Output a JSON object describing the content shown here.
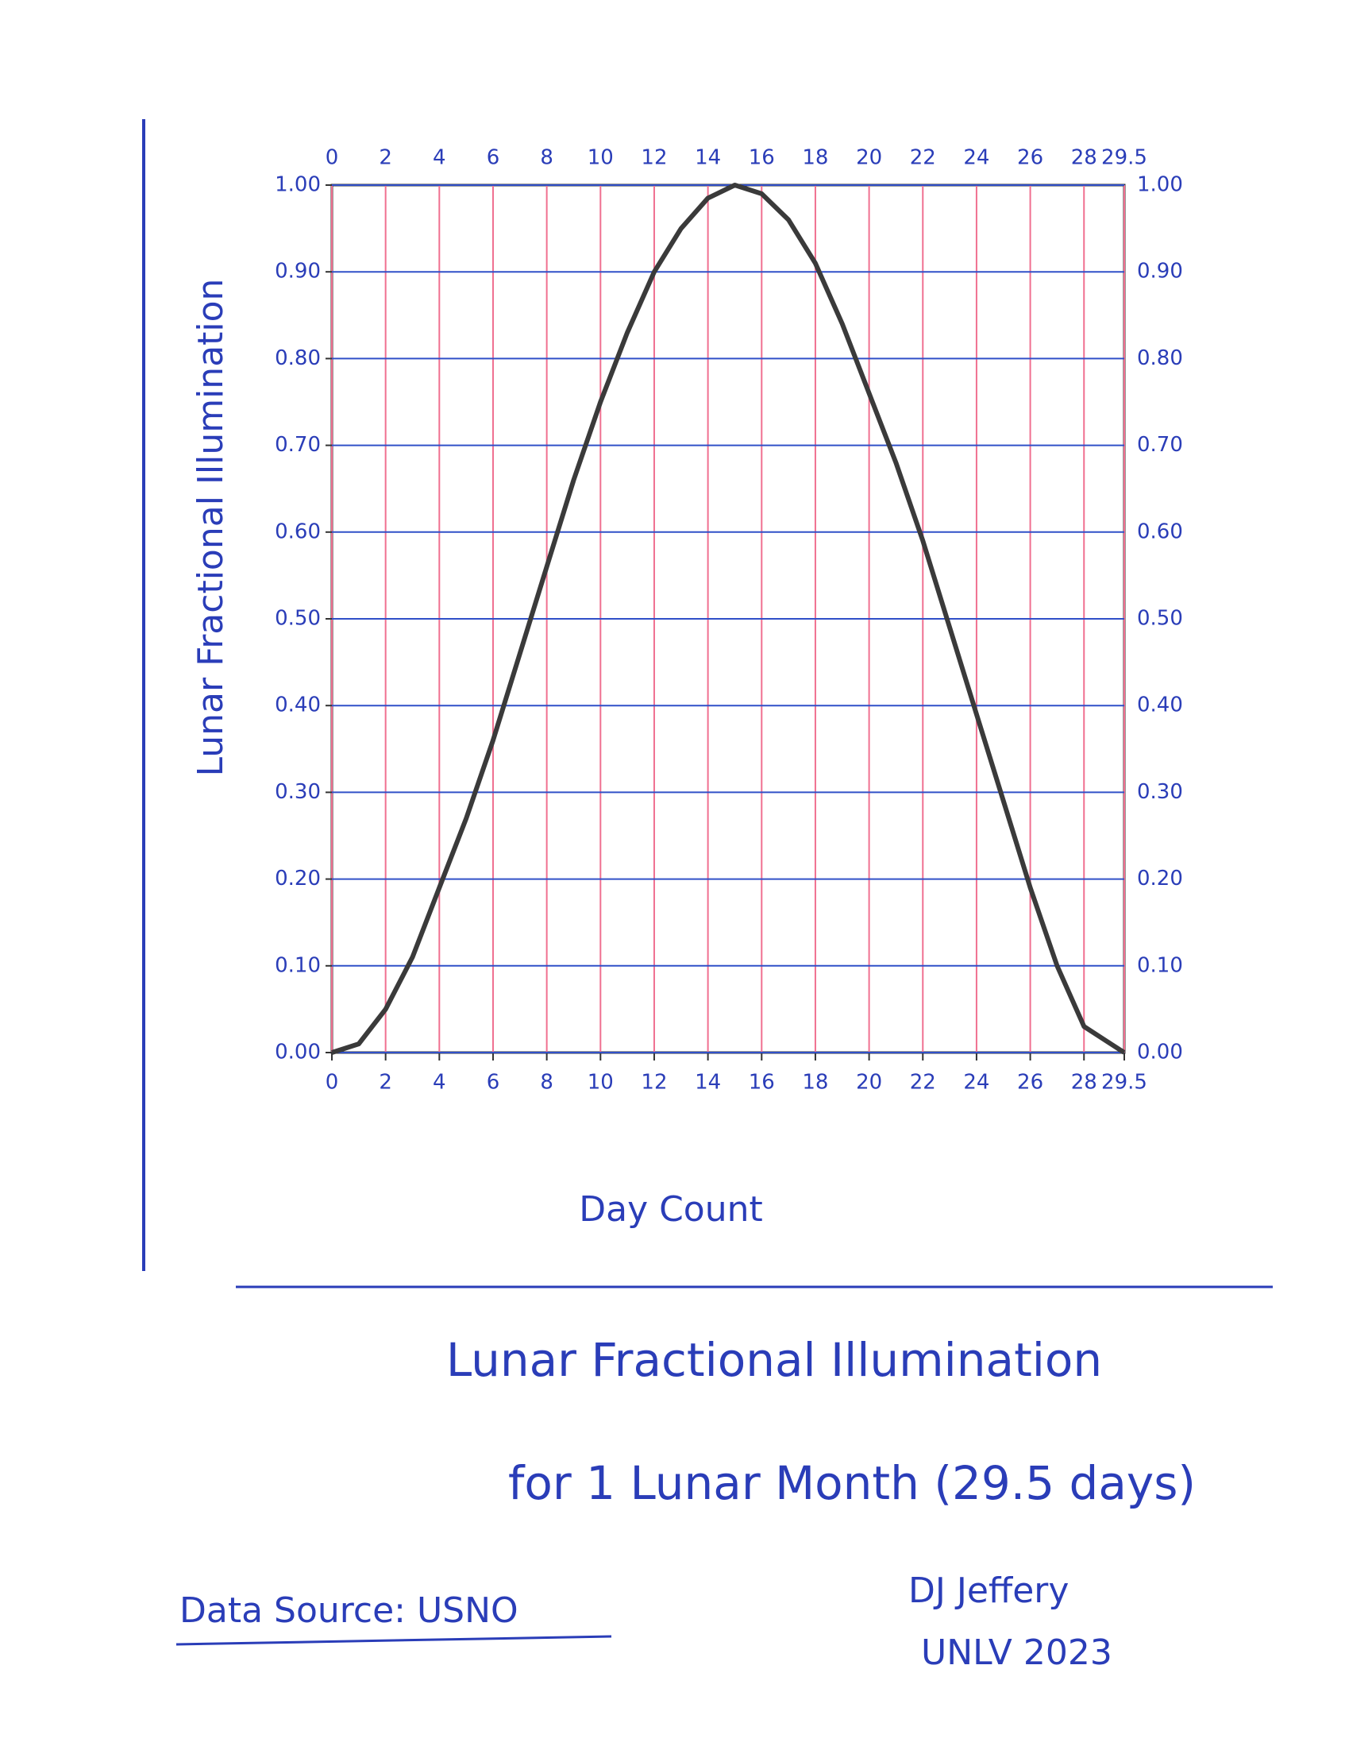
{
  "chart_data": {
    "type": "line",
    "title": "Lunar Fractional Illumination",
    "subtitle": "for 1 Lunar Month (29.5 days)",
    "x_label": "Day Count",
    "y_label": "Lunar Fractional Illumination",
    "annotations": [
      "Data Source: USNO",
      "DJ Jeffery",
      "UNLV 2023"
    ],
    "x": [
      0,
      1,
      2,
      3,
      4,
      5,
      6,
      7,
      8,
      9,
      10,
      11,
      12,
      13,
      14,
      15,
      16,
      17,
      18,
      19,
      20,
      21,
      22,
      23,
      24,
      25,
      26,
      27,
      28,
      29,
      29.5
    ],
    "values": [
      0,
      0.01,
      0.05,
      0.11,
      0.19,
      0.27,
      0.36,
      0.46,
      0.56,
      0.66,
      0.75,
      0.83,
      0.9,
      0.95,
      0.985,
      1.0,
      0.99,
      0.96,
      0.91,
      0.84,
      0.76,
      0.68,
      0.59,
      0.49,
      0.39,
      0.29,
      0.19,
      0.1,
      0.03,
      0.01,
      0
    ],
    "color": "#3a3a3a",
    "xlim": [
      0,
      29.5
    ],
    "ylim": [
      0,
      1
    ],
    "xticks": [
      0,
      2,
      4,
      6,
      8,
      10,
      12,
      14,
      16,
      18,
      20,
      22,
      24,
      26,
      28,
      29.5
    ],
    "yticks": [
      {
        "value": 0,
        "label": "0.00"
      },
      {
        "value": 0.1,
        "label": "0.10"
      },
      {
        "value": 0.2,
        "label": "0.20"
      },
      {
        "value": 0.3,
        "label": "0.30"
      },
      {
        "value": 0.4,
        "label": "0.40"
      },
      {
        "value": 0.5,
        "label": "0.50"
      },
      {
        "value": 0.6,
        "label": "0.60"
      },
      {
        "value": 0.7,
        "label": "0.70"
      },
      {
        "value": 0.8,
        "label": "0.80"
      },
      {
        "value": 0.9,
        "label": "0.90"
      },
      {
        "value": 1,
        "label": "1.00"
      }
    ],
    "grid": true
  }
}
